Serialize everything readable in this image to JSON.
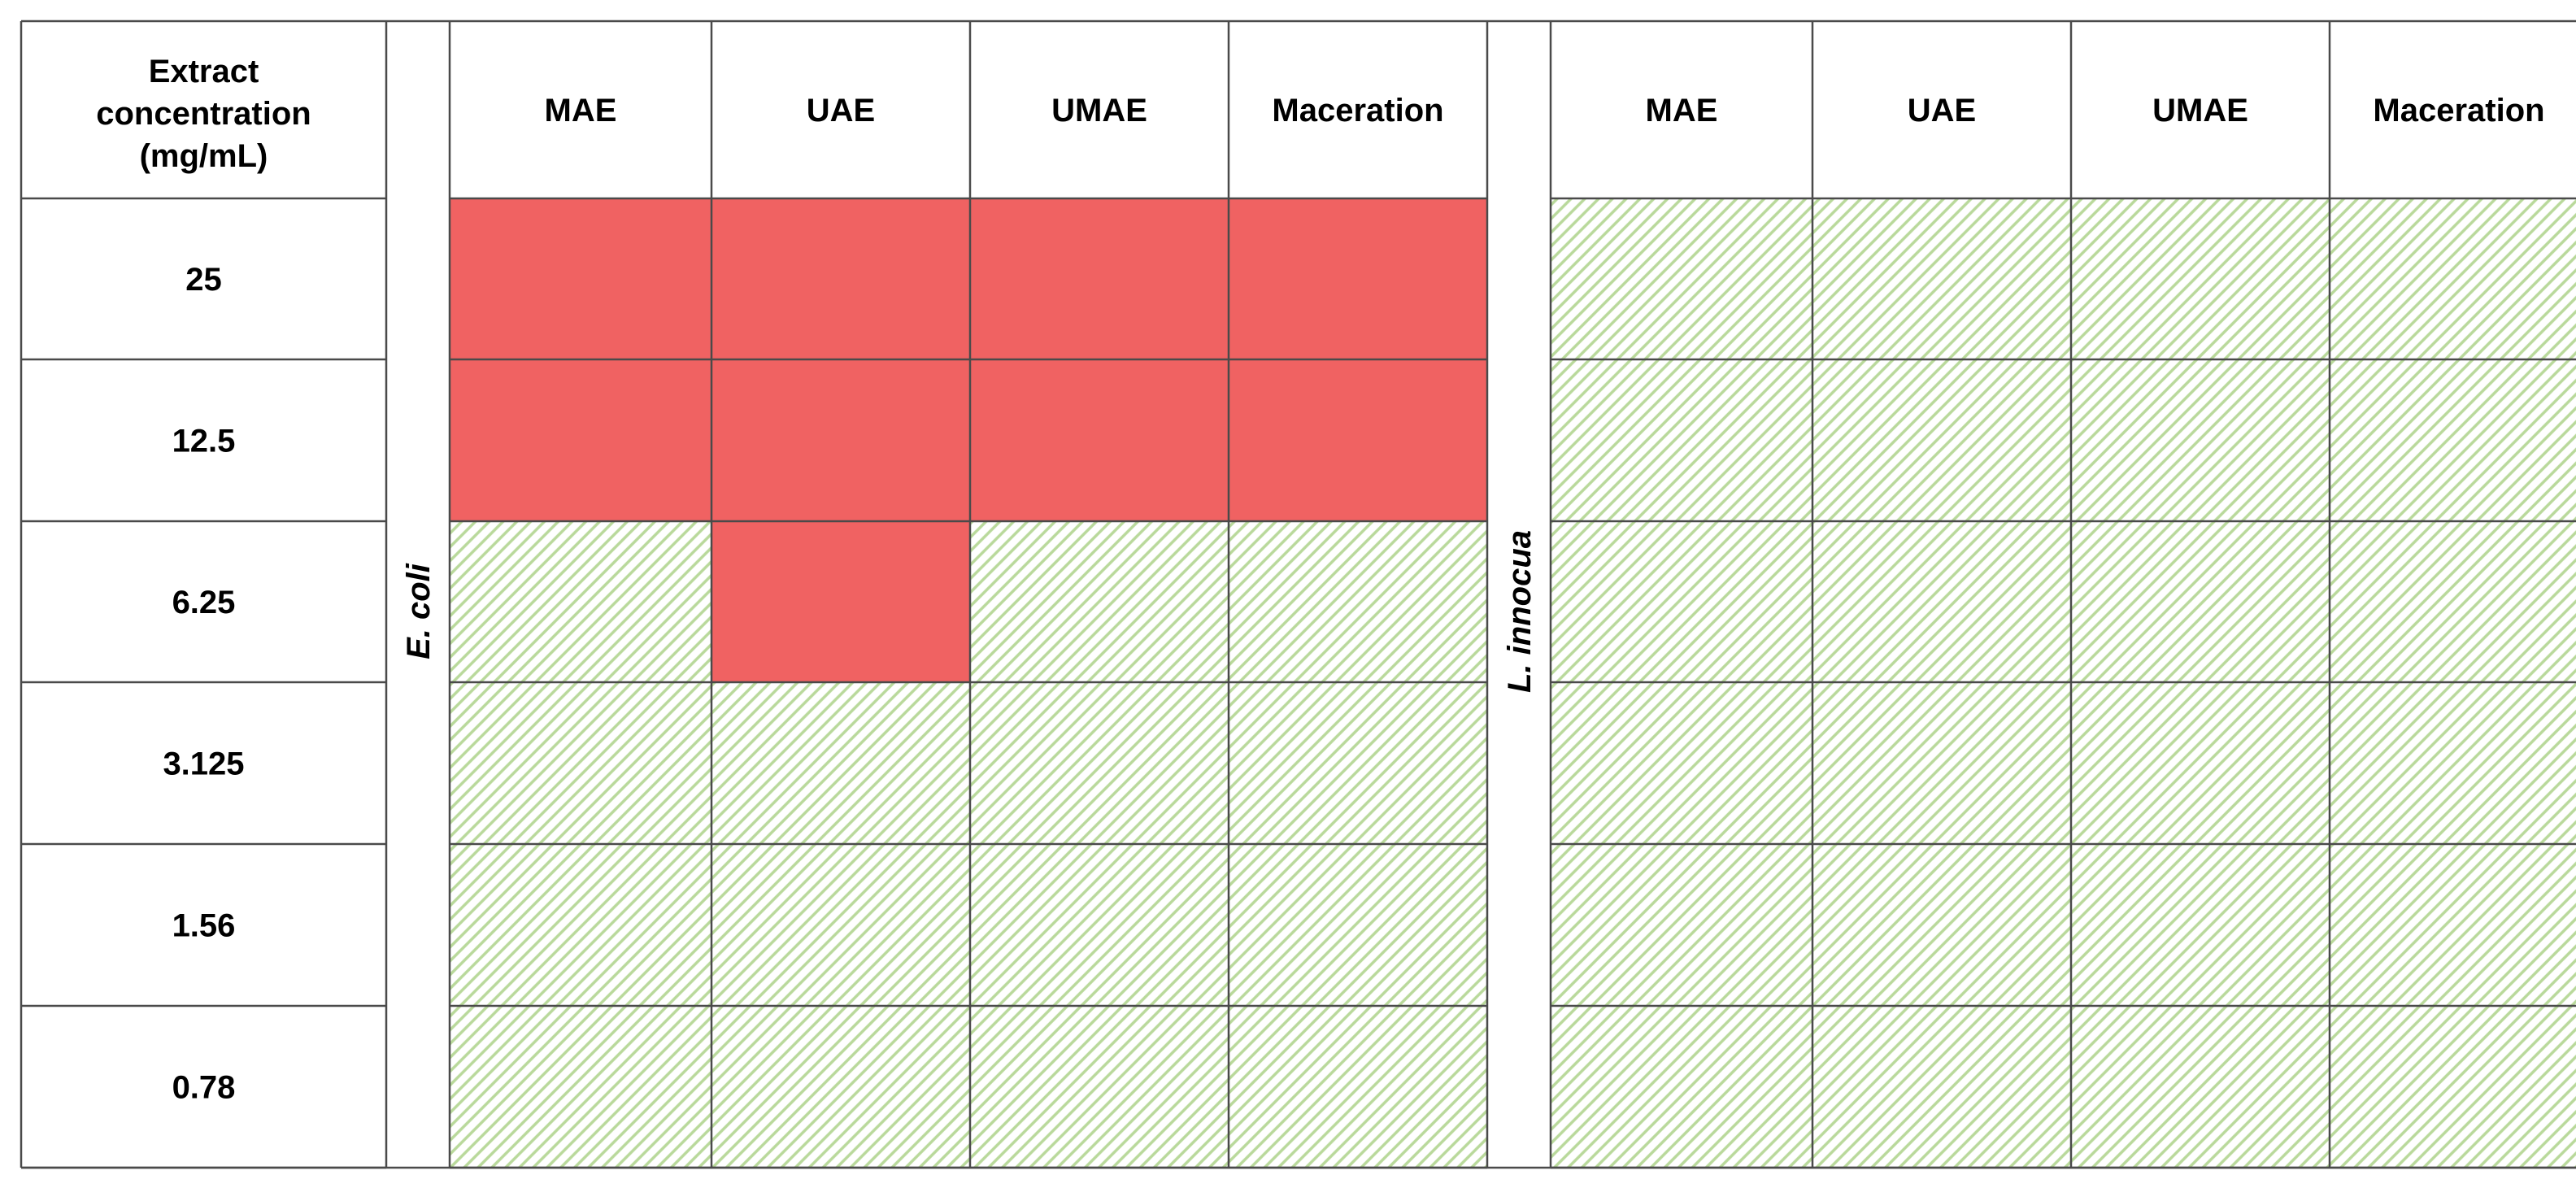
{
  "chart_data": {
    "type": "table",
    "row_header": [
      "Extract",
      "concentration",
      "(mg/mL)"
    ],
    "rows": [
      "25",
      "12.5",
      "6.25",
      "3.125",
      "1.56",
      "0.78"
    ],
    "groups": [
      {
        "organism": "E. coli",
        "columns": [
          "MAE",
          "UAE",
          "UMAE",
          "Maceration"
        ],
        "inhibited": [
          [
            true,
            true,
            true,
            true
          ],
          [
            true,
            true,
            true,
            true
          ],
          [
            false,
            true,
            false,
            false
          ],
          [
            false,
            false,
            false,
            false
          ],
          [
            false,
            false,
            false,
            false
          ],
          [
            false,
            false,
            false,
            false
          ]
        ]
      },
      {
        "organism": "L. innocua",
        "columns": [
          "MAE",
          "UAE",
          "UMAE",
          "Maceration"
        ],
        "inhibited": [
          [
            false,
            false,
            false,
            false
          ],
          [
            false,
            false,
            false,
            false
          ],
          [
            false,
            false,
            false,
            false
          ],
          [
            false,
            false,
            false,
            false
          ],
          [
            false,
            false,
            false,
            false
          ],
          [
            false,
            false,
            false,
            false
          ]
        ]
      }
    ],
    "colors": {
      "inhibited": "#f06262",
      "not_inhibited_hatch": "#b9d99b",
      "grid": "#4a4a4a"
    }
  }
}
